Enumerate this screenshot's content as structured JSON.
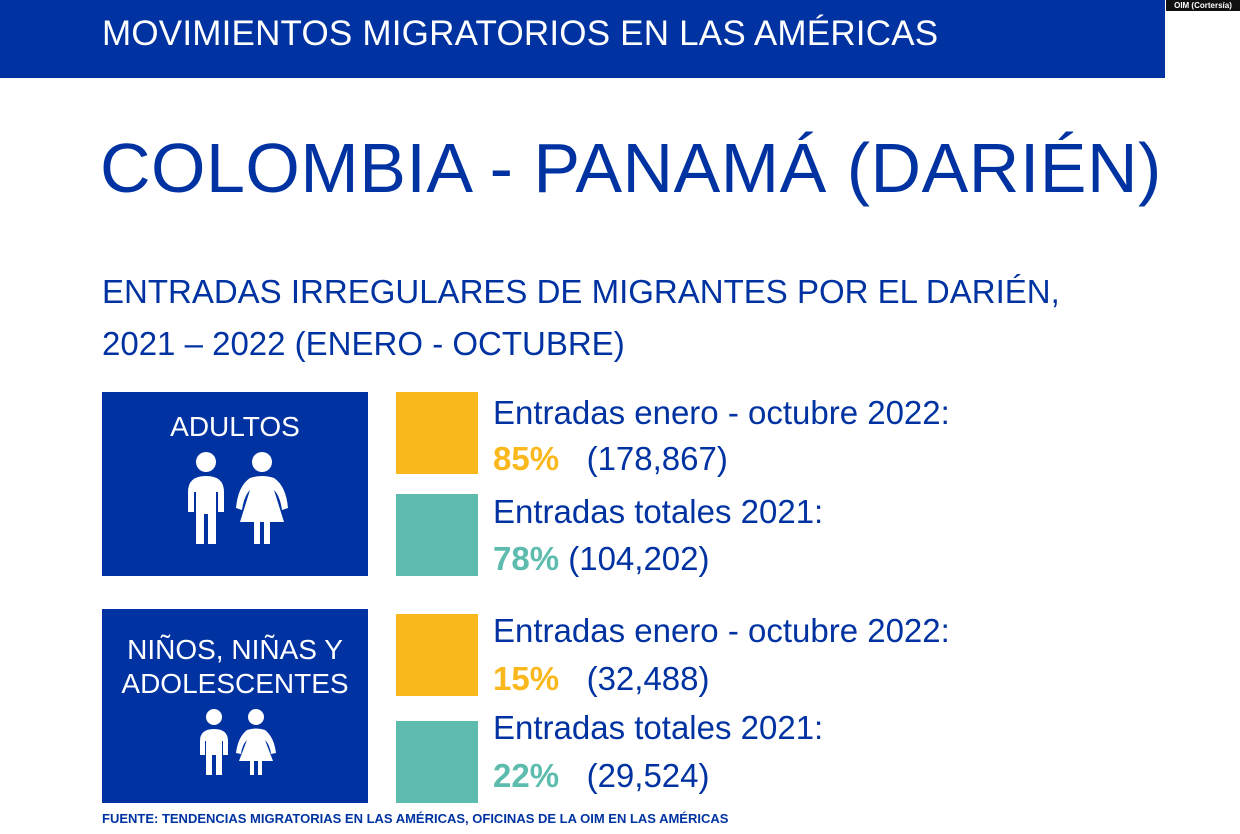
{
  "header": {
    "title": "MOVIMIENTOS MIGRATORIOS EN LAS AMÉRICAS",
    "credit": "OIM (Cortersía)"
  },
  "main_title": "COLOMBIA - PANAMÁ (DARIÉN)",
  "subtitle": {
    "line1": "ENTRADAS IRREGULARES DE MIGRANTES POR EL DARIÉN,",
    "line2": "2021 – 2022 (ENERO - OCTUBRE)"
  },
  "groups": [
    {
      "label": "ADULTOS",
      "stats": [
        {
          "label": "Entradas enero - octubre 2022:",
          "percent": "85%",
          "count": "(178,867)",
          "color": "#fbb81d"
        },
        {
          "label": "Entradas totales 2021:",
          "percent": "78%",
          "count": "(104,202)",
          "color": "#5dbcae"
        }
      ]
    },
    {
      "label_line1": "NIÑOS, NIÑAS Y",
      "label_line2": "ADOLESCENTES",
      "stats": [
        {
          "label": "Entradas enero - octubre 2022:",
          "percent": "15%",
          "count": "(32,488)",
          "color": "#fbb81d"
        },
        {
          "label": "Entradas totales 2021:",
          "percent": "22%",
          "count": "(29,524)",
          "color": "#5dbcae"
        }
      ]
    }
  ],
  "source": "FUENTE: TENDENCIAS MIGRATORIAS EN LAS AMÉRICAS, OFICINAS DE LA OIM EN LAS AMÉRICAS",
  "colors": {
    "brand_blue": "#0033a1",
    "yellow": "#fbb81d",
    "teal": "#5dbcae"
  }
}
